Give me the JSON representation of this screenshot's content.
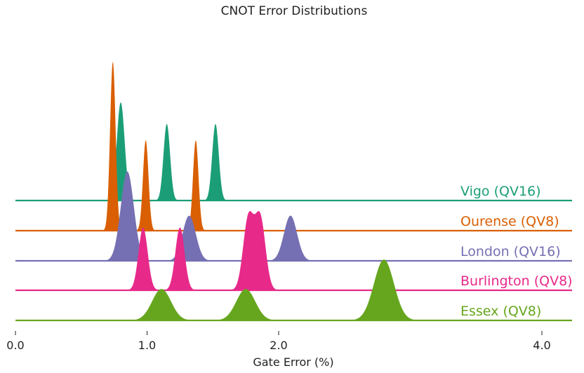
{
  "chart_data": {
    "type": "area",
    "title": "CNOT Error Distributions",
    "xlabel": "Gate Error (%)",
    "ylabel": "",
    "xlim": [
      0.0,
      4.25
    ],
    "x_ticks": [
      0.0,
      1.0,
      2.0,
      4.0
    ],
    "x_tick_labels": [
      "0.0",
      "1.0",
      "2.0",
      "4.0"
    ],
    "grid": false,
    "legend": "labels placed on each ridge at right",
    "series": [
      {
        "name": "Vigo (QV16)",
        "color": "#1b9e77",
        "peaks": [
          {
            "center": 0.8,
            "sigma": 0.03,
            "height": 1.0
          },
          {
            "center": 1.15,
            "sigma": 0.025,
            "height": 0.78
          },
          {
            "center": 1.52,
            "sigma": 0.025,
            "height": 0.78
          }
        ]
      },
      {
        "name": "Ourense (QV8)",
        "color": "#d95f02",
        "peaks": [
          {
            "center": 0.74,
            "sigma": 0.021,
            "height": 1.72
          },
          {
            "center": 0.99,
            "sigma": 0.021,
            "height": 0.92
          },
          {
            "center": 1.37,
            "sigma": 0.021,
            "height": 0.92
          }
        ]
      },
      {
        "name": "London (QV16)",
        "color": "#7570b3",
        "peaks": [
          {
            "center": 0.85,
            "sigma": 0.05,
            "height": 0.91
          },
          {
            "center": 1.32,
            "sigma": 0.05,
            "height": 0.46
          },
          {
            "center": 2.09,
            "sigma": 0.05,
            "height": 0.46
          }
        ]
      },
      {
        "name": "Burlington (QV8)",
        "color": "#e7298a",
        "peaks": [
          {
            "center": 0.97,
            "sigma": 0.035,
            "height": 0.64
          },
          {
            "center": 1.25,
            "sigma": 0.035,
            "height": 0.64
          },
          {
            "center": 1.77,
            "sigma": 0.04,
            "height": 0.73
          },
          {
            "center": 1.86,
            "sigma": 0.04,
            "height": 0.73
          }
        ]
      },
      {
        "name": "Essex (QV8)",
        "color": "#66a61e",
        "peaks": [
          {
            "center": 1.11,
            "sigma": 0.072,
            "height": 0.32
          },
          {
            "center": 1.75,
            "sigma": 0.072,
            "height": 0.32
          },
          {
            "center": 2.8,
            "sigma": 0.076,
            "height": 0.62
          }
        ]
      }
    ]
  }
}
